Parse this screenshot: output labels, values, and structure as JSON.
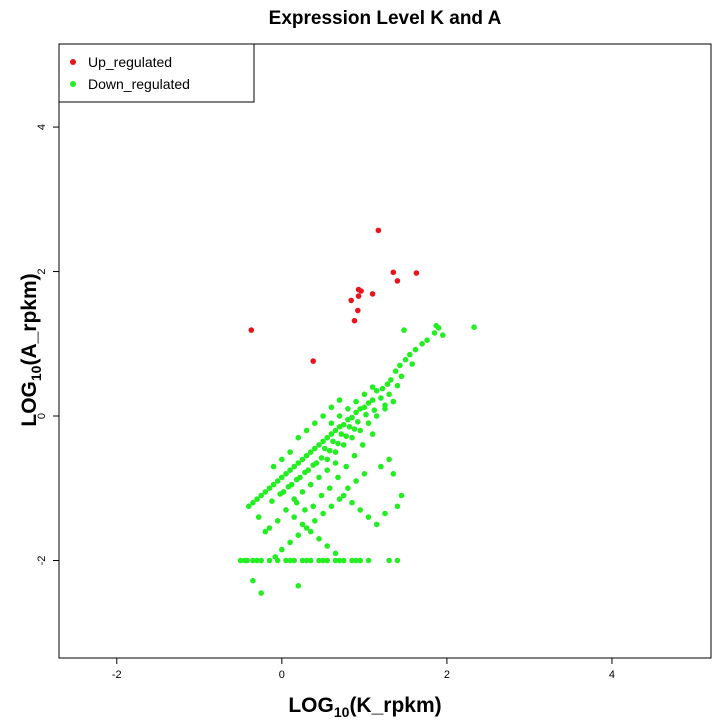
{
  "chart_data": {
    "type": "scatter",
    "title": "Expression Level K and A",
    "xlabel": {
      "prefix": "LOG",
      "sub": "10",
      "suffix": "(K_rpkm)"
    },
    "ylabel": {
      "prefix": "LOG",
      "sub": "10",
      "suffix": "(A_rpkm)"
    },
    "xlim": [
      -2.7,
      5.2
    ],
    "ylim": [
      -3.35,
      5.15
    ],
    "xticks": [
      -2,
      0,
      2,
      4
    ],
    "yticks": [
      -2,
      0,
      2,
      4
    ],
    "grid": false,
    "legend": "top-left",
    "series": [
      {
        "name": "Up_regulated",
        "color": "#e8141c",
        "points": [
          [
            1.17,
            2.57
          ],
          [
            1.35,
            1.99
          ],
          [
            1.63,
            1.98
          ],
          [
            1.4,
            1.87
          ],
          [
            0.93,
            1.75
          ],
          [
            0.96,
            1.73
          ],
          [
            1.1,
            1.69
          ],
          [
            0.93,
            1.66
          ],
          [
            0.84,
            1.6
          ],
          [
            0.92,
            1.46
          ],
          [
            0.88,
            1.32
          ],
          [
            -0.37,
            1.19
          ],
          [
            0.38,
            0.76
          ]
        ]
      },
      {
        "name": "Down_regulated",
        "color": "#22ee22",
        "points": [
          [
            1.87,
            1.25
          ],
          [
            1.9,
            1.22
          ],
          [
            1.85,
            1.15
          ],
          [
            1.95,
            1.12
          ],
          [
            2.33,
            1.23
          ],
          [
            1.48,
            1.19
          ],
          [
            1.76,
            1.05
          ],
          [
            1.7,
            1.0
          ],
          [
            1.62,
            0.92
          ],
          [
            1.55,
            0.85
          ],
          [
            1.5,
            0.78
          ],
          [
            1.58,
            0.72
          ],
          [
            1.43,
            0.7
          ],
          [
            1.38,
            0.62
          ],
          [
            1.45,
            0.55
          ],
          [
            1.32,
            0.5
          ],
          [
            1.28,
            0.44
          ],
          [
            1.4,
            0.42
          ],
          [
            1.22,
            0.38
          ],
          [
            1.15,
            0.35
          ],
          [
            1.3,
            0.3
          ],
          [
            1.2,
            0.25
          ],
          [
            1.1,
            0.22
          ],
          [
            1.05,
            0.18
          ],
          [
            1.25,
            0.15
          ],
          [
            1.0,
            0.12
          ],
          [
            0.95,
            0.1
          ],
          [
            1.12,
            0.08
          ],
          [
            0.9,
            0.05
          ],
          [
            1.02,
            0.02
          ],
          [
            0.85,
            -0.02
          ],
          [
            0.8,
            -0.05
          ],
          [
            0.92,
            -0.08
          ],
          [
            0.75,
            -0.12
          ],
          [
            0.7,
            -0.15
          ],
          [
            0.88,
            -0.18
          ],
          [
            0.65,
            -0.2
          ],
          [
            0.6,
            -0.25
          ],
          [
            0.78,
            -0.28
          ],
          [
            0.55,
            -0.3
          ],
          [
            0.5,
            -0.35
          ],
          [
            0.68,
            -0.38
          ],
          [
            0.45,
            -0.4
          ],
          [
            0.4,
            -0.45
          ],
          [
            0.58,
            -0.48
          ],
          [
            0.35,
            -0.5
          ],
          [
            0.3,
            -0.55
          ],
          [
            0.48,
            -0.58
          ],
          [
            0.25,
            -0.6
          ],
          [
            0.2,
            -0.65
          ],
          [
            0.38,
            -0.68
          ],
          [
            0.15,
            -0.7
          ],
          [
            0.1,
            -0.75
          ],
          [
            0.28,
            -0.78
          ],
          [
            0.05,
            -0.8
          ],
          [
            0.0,
            -0.85
          ],
          [
            0.18,
            -0.88
          ],
          [
            -0.05,
            -0.9
          ],
          [
            -0.1,
            -0.95
          ],
          [
            0.08,
            -0.98
          ],
          [
            -0.15,
            -1.0
          ],
          [
            -0.2,
            -1.05
          ],
          [
            -0.02,
            -1.08
          ],
          [
            -0.25,
            -1.1
          ],
          [
            -0.3,
            -1.15
          ],
          [
            -0.12,
            -1.18
          ],
          [
            -0.35,
            -1.2
          ],
          [
            -0.4,
            -1.25
          ],
          [
            0.6,
            -0.1
          ],
          [
            0.7,
            0.0
          ],
          [
            0.8,
            0.1
          ],
          [
            0.9,
            0.2
          ],
          [
            1.0,
            0.3
          ],
          [
            1.1,
            0.4
          ],
          [
            0.55,
            -0.6
          ],
          [
            0.65,
            -0.5
          ],
          [
            0.75,
            -0.4
          ],
          [
            0.85,
            -0.3
          ],
          [
            0.95,
            -0.2
          ],
          [
            1.05,
            -0.1
          ],
          [
            0.2,
            -0.3
          ],
          [
            0.3,
            -0.2
          ],
          [
            0.4,
            -0.1
          ],
          [
            0.5,
            0.0
          ],
          [
            0.6,
            0.12
          ],
          [
            0.7,
            0.22
          ],
          [
            0.1,
            -0.5
          ],
          [
            0.0,
            -0.6
          ],
          [
            -0.1,
            -0.7
          ],
          [
            0.05,
            -1.3
          ],
          [
            0.15,
            -1.4
          ],
          [
            0.25,
            -1.5
          ],
          [
            0.35,
            -1.6
          ],
          [
            0.45,
            -1.7
          ],
          [
            0.55,
            -1.8
          ],
          [
            0.65,
            -1.9
          ],
          [
            -0.05,
            -1.45
          ],
          [
            -0.15,
            -1.55
          ],
          [
            0.75,
            -1.1
          ],
          [
            0.85,
            -1.2
          ],
          [
            0.95,
            -1.3
          ],
          [
            1.05,
            -1.4
          ],
          [
            1.15,
            -1.5
          ],
          [
            1.25,
            -1.35
          ],
          [
            1.35,
            -0.8
          ],
          [
            1.45,
            -1.1
          ],
          [
            1.4,
            -1.25
          ],
          [
            1.2,
            -0.7
          ],
          [
            1.3,
            -0.6
          ],
          [
            1.0,
            -0.8
          ],
          [
            0.9,
            -0.9
          ],
          [
            0.8,
            -1.0
          ],
          [
            0.7,
            -1.15
          ],
          [
            0.6,
            -1.25
          ],
          [
            0.5,
            -1.35
          ],
          [
            0.4,
            -1.45
          ],
          [
            0.3,
            -1.55
          ],
          [
            0.2,
            -1.65
          ],
          [
            0.1,
            -1.75
          ],
          [
            0.0,
            -1.85
          ],
          [
            -0.08,
            -1.95
          ],
          [
            0.35,
            -0.95
          ],
          [
            0.45,
            -0.85
          ],
          [
            0.55,
            -0.75
          ],
          [
            0.65,
            -0.65
          ],
          [
            0.25,
            -1.05
          ],
          [
            0.15,
            -1.15
          ],
          [
            1.15,
            0.0
          ],
          [
            1.25,
            0.1
          ],
          [
            1.35,
            0.2
          ],
          [
            1.1,
            -0.25
          ],
          [
            0.98,
            -0.4
          ],
          [
            0.88,
            -0.55
          ],
          [
            0.78,
            -0.7
          ],
          [
            0.68,
            -0.85
          ],
          [
            0.58,
            -1.0
          ],
          [
            0.48,
            -1.1
          ],
          [
            0.38,
            -1.25
          ],
          [
            0.28,
            -1.3
          ],
          [
            0.18,
            -1.2
          ],
          [
            -0.28,
            -1.4
          ],
          [
            -0.2,
            -1.6
          ],
          [
            -0.35,
            -2.28
          ],
          [
            -0.25,
            -2.45
          ],
          [
            0.2,
            -2.35
          ],
          [
            0.52,
            -0.45
          ],
          [
            0.62,
            -0.35
          ],
          [
            0.72,
            -0.25
          ],
          [
            0.82,
            -0.15
          ],
          [
            0.42,
            -0.65
          ],
          [
            0.32,
            -0.75
          ],
          [
            0.22,
            -0.85
          ],
          [
            0.12,
            -0.95
          ],
          [
            0.02,
            -1.05
          ],
          [
            -0.45,
            -2.0
          ],
          [
            -0.5,
            -2.0
          ],
          [
            -0.35,
            -2.0
          ],
          [
            -0.25,
            -2.0
          ],
          [
            -0.15,
            -2.0
          ],
          [
            -0.05,
            -2.0
          ],
          [
            0.05,
            -2.0
          ],
          [
            0.15,
            -2.0
          ],
          [
            0.25,
            -2.0
          ],
          [
            0.35,
            -2.0
          ],
          [
            0.45,
            -2.0
          ],
          [
            0.55,
            -2.0
          ],
          [
            0.65,
            -2.0
          ],
          [
            0.75,
            -2.0
          ],
          [
            0.85,
            -2.0
          ],
          [
            0.95,
            -2.0
          ],
          [
            1.05,
            -2.0
          ],
          [
            1.3,
            -2.0
          ],
          [
            1.4,
            -2.0
          ],
          [
            -0.42,
            -2.0
          ],
          [
            -0.3,
            -2.0
          ],
          [
            0.1,
            -2.0
          ],
          [
            0.3,
            -2.0
          ],
          [
            0.5,
            -2.0
          ],
          [
            0.7,
            -2.0
          ],
          [
            0.9,
            -2.0
          ]
        ]
      }
    ]
  }
}
